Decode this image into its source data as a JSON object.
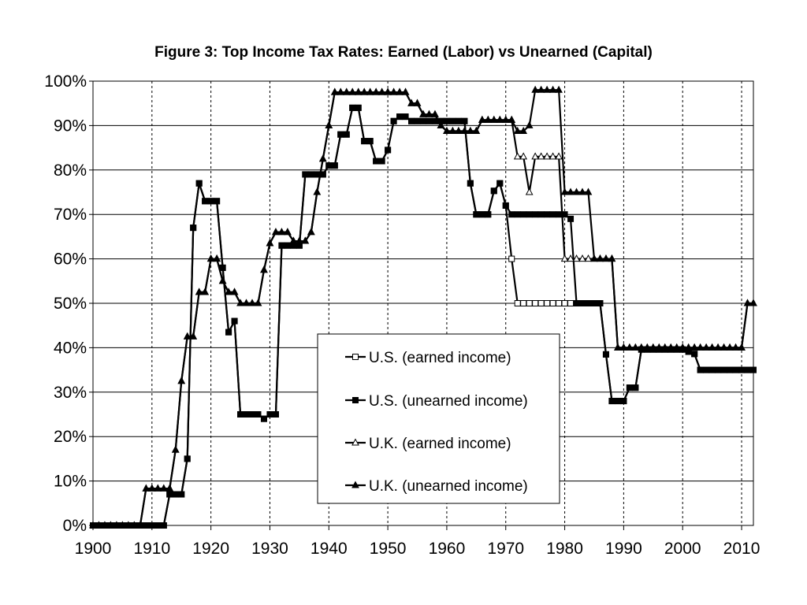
{
  "chart_data": {
    "type": "line",
    "title": "Figure 3: Top Income Tax Rates: Earned (Labor) vs Unearned (Capital)",
    "xlabel": "",
    "ylabel": "",
    "xlim": [
      1900,
      2012
    ],
    "ylim": [
      0,
      100
    ],
    "x_ticks": [
      1900,
      1910,
      1920,
      1930,
      1940,
      1950,
      1960,
      1970,
      1980,
      1990,
      2000,
      2010
    ],
    "x_tick_labels": [
      "1900",
      "1910",
      "1920",
      "1930",
      "1940",
      "1950",
      "1960",
      "1970",
      "1980",
      "1990",
      "2000",
      "2010"
    ],
    "y_ticks": [
      0,
      10,
      20,
      30,
      40,
      50,
      60,
      70,
      80,
      90,
      100
    ],
    "y_tick_labels": [
      "0%",
      "10%",
      "20%",
      "30%",
      "40%",
      "50%",
      "60%",
      "70%",
      "80%",
      "90%",
      "100%"
    ],
    "grid": {
      "horizontal": "solid",
      "vertical": "dashed"
    },
    "legend_position": "center-bottom",
    "series": [
      {
        "name": "U.S. (earned income)",
        "marker": "open-square",
        "x": [
          1900,
          1901,
          1902,
          1903,
          1904,
          1905,
          1906,
          1907,
          1908,
          1909,
          1910,
          1911,
          1912,
          1913,
          1914,
          1915,
          1916,
          1917,
          1918,
          1919,
          1920,
          1921,
          1922,
          1923,
          1924,
          1925,
          1926,
          1927,
          1928,
          1929,
          1930,
          1931,
          1932,
          1933,
          1934,
          1935,
          1936,
          1937,
          1938,
          1939,
          1940,
          1941,
          1942,
          1943,
          1944,
          1945,
          1946,
          1947,
          1948,
          1949,
          1950,
          1951,
          1952,
          1953,
          1954,
          1955,
          1956,
          1957,
          1958,
          1959,
          1960,
          1961,
          1962,
          1963,
          1964,
          1965,
          1966,
          1967,
          1968,
          1969,
          1970,
          1971,
          1972,
          1973,
          1974,
          1975,
          1976,
          1977,
          1978,
          1979,
          1980,
          1981,
          1982,
          1983,
          1984,
          1985,
          1986,
          1987,
          1988,
          1989,
          1990,
          1991,
          1992,
          1993,
          1994,
          1995,
          1996,
          1997,
          1998,
          1999,
          2000,
          2001,
          2002,
          2003,
          2004,
          2005,
          2006,
          2007,
          2008,
          2009,
          2010,
          2011,
          2012
        ],
        "values": [
          0,
          0,
          0,
          0,
          0,
          0,
          0,
          0,
          0,
          0,
          0,
          0,
          0,
          7,
          7,
          7,
          15,
          67,
          77,
          73,
          73,
          73,
          58,
          43.5,
          46,
          25,
          25,
          25,
          25,
          24,
          25,
          25,
          63,
          63,
          63,
          63,
          79,
          79,
          79,
          79,
          81,
          81,
          88,
          88,
          94,
          94,
          86.5,
          86.5,
          82,
          82,
          84.5,
          91,
          92,
          92,
          91,
          91,
          91,
          91,
          91,
          91,
          91,
          91,
          91,
          91,
          77,
          70,
          70,
          70,
          75.3,
          77,
          72,
          60,
          50,
          50,
          50,
          50,
          50,
          50,
          50,
          50,
          50,
          50,
          50,
          50,
          50,
          50,
          50,
          38.5,
          28,
          28,
          28,
          31,
          31,
          39.6,
          39.6,
          39.6,
          39.6,
          39.6,
          39.6,
          39.6,
          39.6,
          39.1,
          38.6,
          35,
          35,
          35,
          35,
          35,
          35,
          35,
          35,
          35,
          35
        ]
      },
      {
        "name": "U.S. (unearned income)",
        "marker": "filled-square",
        "x": [
          1900,
          1901,
          1902,
          1903,
          1904,
          1905,
          1906,
          1907,
          1908,
          1909,
          1910,
          1911,
          1912,
          1913,
          1914,
          1915,
          1916,
          1917,
          1918,
          1919,
          1920,
          1921,
          1922,
          1923,
          1924,
          1925,
          1926,
          1927,
          1928,
          1929,
          1930,
          1931,
          1932,
          1933,
          1934,
          1935,
          1936,
          1937,
          1938,
          1939,
          1940,
          1941,
          1942,
          1943,
          1944,
          1945,
          1946,
          1947,
          1948,
          1949,
          1950,
          1951,
          1952,
          1953,
          1954,
          1955,
          1956,
          1957,
          1958,
          1959,
          1960,
          1961,
          1962,
          1963,
          1964,
          1965,
          1966,
          1967,
          1968,
          1969,
          1970,
          1971,
          1972,
          1973,
          1974,
          1975,
          1976,
          1977,
          1978,
          1979,
          1980,
          1981,
          1982,
          1983,
          1984,
          1985,
          1986,
          1987,
          1988,
          1989,
          1990,
          1991,
          1992,
          1993,
          1994,
          1995,
          1996,
          1997,
          1998,
          1999,
          2000,
          2001,
          2002,
          2003,
          2004,
          2005,
          2006,
          2007,
          2008,
          2009,
          2010,
          2011,
          2012
        ],
        "values": [
          0,
          0,
          0,
          0,
          0,
          0,
          0,
          0,
          0,
          0,
          0,
          0,
          0,
          7,
          7,
          7,
          15,
          67,
          77,
          73,
          73,
          73,
          58,
          43.5,
          46,
          25,
          25,
          25,
          25,
          24,
          25,
          25,
          63,
          63,
          63,
          63,
          79,
          79,
          79,
          79,
          81,
          81,
          88,
          88,
          94,
          94,
          86.5,
          86.5,
          82,
          82,
          84.5,
          91,
          92,
          92,
          91,
          91,
          91,
          91,
          91,
          91,
          91,
          91,
          91,
          91,
          77,
          70,
          70,
          70,
          75.3,
          77,
          72,
          70,
          70,
          70,
          70,
          70,
          70,
          70,
          70,
          70,
          70,
          69,
          50,
          50,
          50,
          50,
          50,
          38.5,
          28,
          28,
          28,
          31,
          31,
          39.6,
          39.6,
          39.6,
          39.6,
          39.6,
          39.6,
          39.6,
          39.6,
          39.1,
          38.6,
          35,
          35,
          35,
          35,
          35,
          35,
          35,
          35,
          35,
          35
        ]
      },
      {
        "name": "U.K. (earned income)",
        "marker": "open-triangle",
        "x": [
          1900,
          1901,
          1902,
          1903,
          1904,
          1905,
          1906,
          1907,
          1908,
          1909,
          1910,
          1911,
          1912,
          1913,
          1914,
          1915,
          1916,
          1917,
          1918,
          1919,
          1920,
          1921,
          1922,
          1923,
          1924,
          1925,
          1926,
          1927,
          1928,
          1929,
          1930,
          1931,
          1932,
          1933,
          1934,
          1935,
          1936,
          1937,
          1938,
          1939,
          1940,
          1941,
          1942,
          1943,
          1944,
          1945,
          1946,
          1947,
          1948,
          1949,
          1950,
          1951,
          1952,
          1953,
          1954,
          1955,
          1956,
          1957,
          1958,
          1959,
          1960,
          1961,
          1962,
          1963,
          1964,
          1965,
          1966,
          1967,
          1968,
          1969,
          1970,
          1971,
          1972,
          1973,
          1974,
          1975,
          1976,
          1977,
          1978,
          1979,
          1980,
          1981,
          1982,
          1983,
          1984,
          1985,
          1986,
          1987,
          1988,
          1989,
          1990,
          1991,
          1992,
          1993,
          1994,
          1995,
          1996,
          1997,
          1998,
          1999,
          2000,
          2001,
          2002,
          2003,
          2004,
          2005,
          2006,
          2007,
          2008,
          2009,
          2010,
          2011,
          2012
        ],
        "values": [
          0,
          0,
          0,
          0,
          0,
          0,
          0,
          0,
          0,
          8.3,
          8.3,
          8.3,
          8.3,
          8.3,
          17,
          32.5,
          42.5,
          42.5,
          52.5,
          52.5,
          60,
          60,
          55,
          52.5,
          52.5,
          50,
          50,
          50,
          50,
          57.5,
          63.5,
          66,
          66,
          66,
          64,
          64,
          64,
          66,
          75,
          82.5,
          90,
          97.5,
          97.5,
          97.5,
          97.5,
          97.5,
          97.5,
          97.5,
          97.5,
          97.5,
          97.5,
          97.5,
          97.5,
          97.5,
          95,
          95,
          92.5,
          92.5,
          92.5,
          90,
          88.75,
          88.75,
          88.75,
          88.75,
          88.75,
          88.75,
          91.25,
          91.25,
          91.25,
          91.25,
          91.25,
          91.25,
          83,
          83,
          75,
          83,
          83,
          83,
          83,
          83,
          60,
          60,
          60,
          60,
          60,
          60,
          60,
          60,
          60,
          40,
          40,
          40,
          40,
          40,
          40,
          40,
          40,
          40,
          40,
          40,
          40,
          40,
          40,
          40,
          40,
          40,
          40,
          40,
          40,
          40,
          40,
          50,
          50
        ]
      },
      {
        "name": "U.K. (unearned income)",
        "marker": "filled-triangle",
        "x": [
          1900,
          1901,
          1902,
          1903,
          1904,
          1905,
          1906,
          1907,
          1908,
          1909,
          1910,
          1911,
          1912,
          1913,
          1914,
          1915,
          1916,
          1917,
          1918,
          1919,
          1920,
          1921,
          1922,
          1923,
          1924,
          1925,
          1926,
          1927,
          1928,
          1929,
          1930,
          1931,
          1932,
          1933,
          1934,
          1935,
          1936,
          1937,
          1938,
          1939,
          1940,
          1941,
          1942,
          1943,
          1944,
          1945,
          1946,
          1947,
          1948,
          1949,
          1950,
          1951,
          1952,
          1953,
          1954,
          1955,
          1956,
          1957,
          1958,
          1959,
          1960,
          1961,
          1962,
          1963,
          1964,
          1965,
          1966,
          1967,
          1968,
          1969,
          1970,
          1971,
          1972,
          1973,
          1974,
          1975,
          1976,
          1977,
          1978,
          1979,
          1980,
          1981,
          1982,
          1983,
          1984,
          1985,
          1986,
          1987,
          1988,
          1989,
          1990,
          1991,
          1992,
          1993,
          1994,
          1995,
          1996,
          1997,
          1998,
          1999,
          2000,
          2001,
          2002,
          2003,
          2004,
          2005,
          2006,
          2007,
          2008,
          2009,
          2010,
          2011,
          2012
        ],
        "values": [
          0,
          0,
          0,
          0,
          0,
          0,
          0,
          0,
          0,
          8.3,
          8.3,
          8.3,
          8.3,
          8.3,
          17,
          32.5,
          42.5,
          42.5,
          52.5,
          52.5,
          60,
          60,
          55,
          52.5,
          52.5,
          50,
          50,
          50,
          50,
          57.5,
          63.5,
          66,
          66,
          66,
          64,
          64,
          64,
          66,
          75,
          82.5,
          90,
          97.5,
          97.5,
          97.5,
          97.5,
          97.5,
          97.5,
          97.5,
          97.5,
          97.5,
          97.5,
          97.5,
          97.5,
          97.5,
          95,
          95,
          92.5,
          92.5,
          92.5,
          90,
          88.75,
          88.75,
          88.75,
          88.75,
          88.75,
          88.75,
          91.25,
          91.25,
          91.25,
          91.25,
          91.25,
          91.25,
          88.75,
          88.75,
          90,
          98,
          98,
          98,
          98,
          98,
          75,
          75,
          75,
          75,
          75,
          60,
          60,
          60,
          60,
          40,
          40,
          40,
          40,
          40,
          40,
          40,
          40,
          40,
          40,
          40,
          40,
          40,
          40,
          40,
          40,
          40,
          40,
          40,
          40,
          40,
          40,
          50,
          50
        ]
      }
    ]
  }
}
